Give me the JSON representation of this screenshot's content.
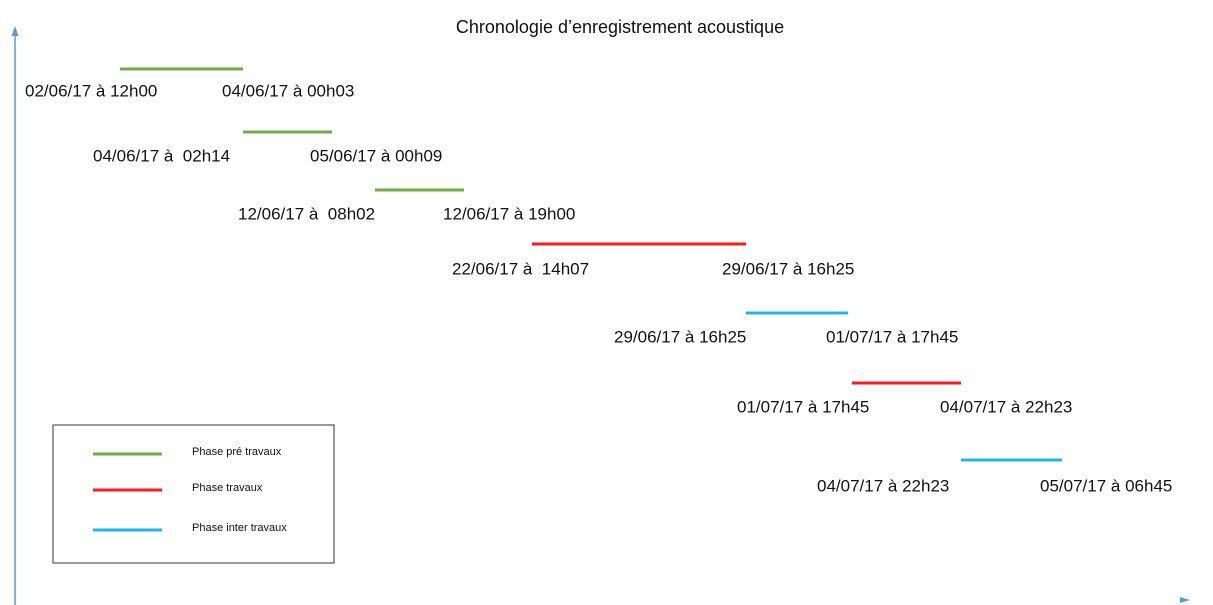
{
  "title": "Chronologie d’enregistrement acoustique",
  "segments": [
    {
      "start": "02/06/17 à 12h00",
      "end": "04/06/17 à 00h03",
      "color": "#70ad47"
    },
    {
      "start": "04/06/17 à  02h14",
      "end": "05/06/17 à 00h09",
      "color": "#70ad47"
    },
    {
      "start": "12/06/17 à  08h02",
      "end": "12/06/17 à 19h00",
      "color": "#70ad47"
    },
    {
      "start": "22/06/17 à  14h07",
      "end": "29/06/17 à 16h25",
      "color": "#ff1a1a"
    },
    {
      "start": "29/06/17 à 16h25",
      "end": "01/07/17 à 17h45",
      "color": "#1fb4ea"
    },
    {
      "start": "01/07/17 à 17h45",
      "end": "04/07/17 à 22h23",
      "color": "#ff1a1a"
    },
    {
      "start": "04/07/17 à 22h23",
      "end": "05/07/17 à 06h45",
      "color": "#1fb4ea"
    }
  ],
  "legend": [
    {
      "label": "Phase pré travaux",
      "color": "#70ad47"
    },
    {
      "label": "Phase travaux",
      "color": "#ff1a1a"
    },
    {
      "label": "Phase inter travaux",
      "color": "#1fb4ea"
    }
  ]
}
